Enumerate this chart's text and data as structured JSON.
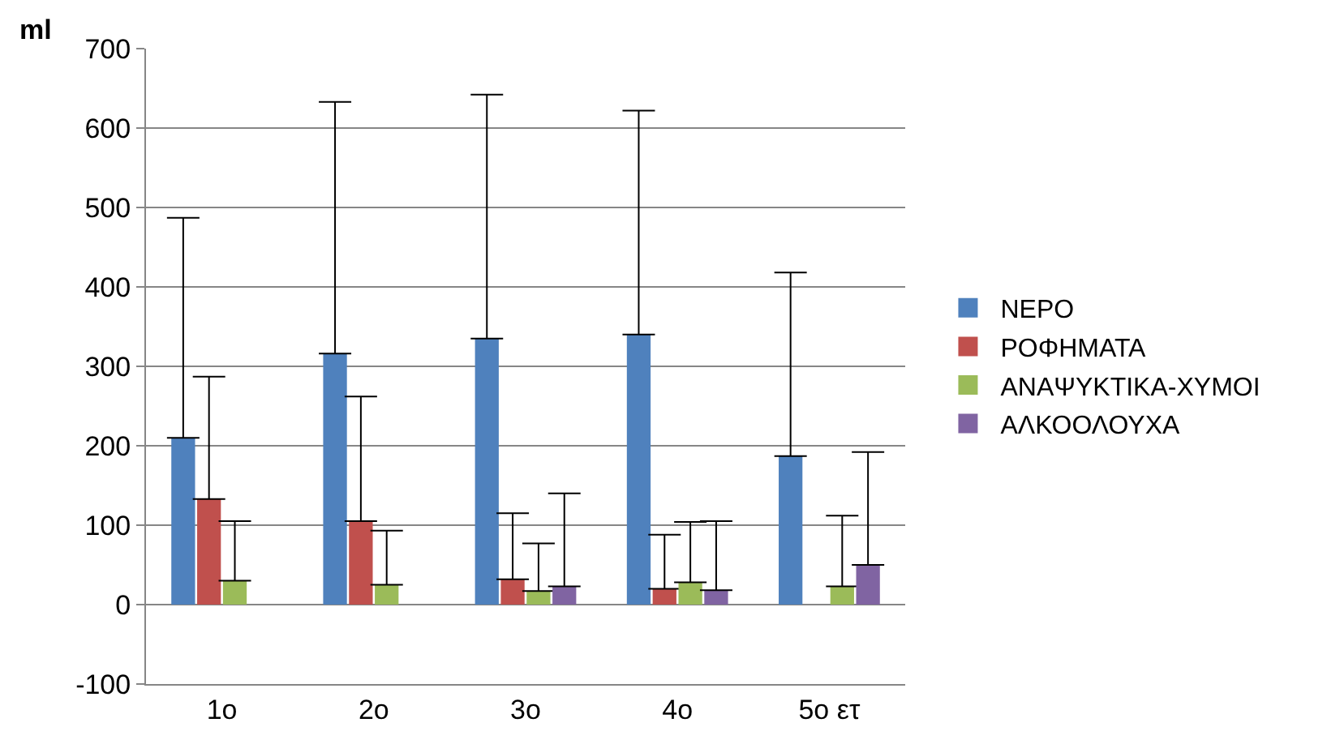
{
  "chart_data": {
    "type": "bar",
    "ylabel": "ml",
    "categories": [
      "1ο",
      "2ο",
      "3ο",
      "4ο",
      "5ο ετ"
    ],
    "series": [
      {
        "name": "ΝΕΡΟ",
        "color": "#4f81bd",
        "values": [
          210,
          316,
          335,
          340,
          187
        ],
        "errors": [
          [
            210,
            487
          ],
          [
            316,
            633
          ],
          [
            335,
            642
          ],
          [
            340,
            622
          ],
          [
            187,
            418
          ]
        ]
      },
      {
        "name": "ΡΟΦΗΜΑΤΑ",
        "color": "#c0504d",
        "values": [
          133,
          105,
          32,
          20,
          0
        ],
        "errors": [
          [
            133,
            287
          ],
          [
            105,
            262
          ],
          [
            32,
            115
          ],
          [
            20,
            88
          ],
          null
        ]
      },
      {
        "name": "ΑΝΑΨΥΚΤΙΚΑ-ΧΥΜΟΙ",
        "color": "#9bbb59",
        "values": [
          30,
          25,
          17,
          28,
          23
        ],
        "errors": [
          [
            30,
            105
          ],
          [
            25,
            93
          ],
          [
            17,
            77
          ],
          [
            28,
            104
          ],
          [
            23,
            112
          ]
        ]
      },
      {
        "name": "ΑΛΚΟΟΛΟΥΧΑ",
        "color": "#8064a2",
        "values": [
          0,
          0,
          23,
          18,
          50
        ],
        "errors": [
          null,
          null,
          [
            23,
            140
          ],
          [
            18,
            105
          ],
          [
            50,
            192
          ]
        ]
      }
    ],
    "ylim": [
      -100,
      700
    ],
    "yticks": [
      -100,
      0,
      100,
      200,
      300,
      400,
      500,
      600,
      700
    ],
    "grid": "y",
    "legend": "right"
  }
}
